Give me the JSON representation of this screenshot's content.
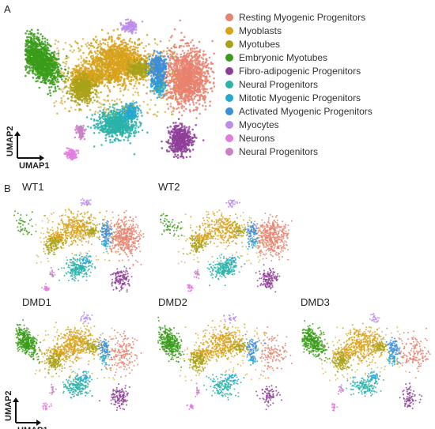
{
  "chart_data": {
    "type": "scatter",
    "panels_label": [
      "A",
      "B"
    ],
    "xlabel": "UMAP1",
    "ylabel": "UMAP2",
    "legend": [
      {
        "name": "Resting Myogenic Progenitors",
        "color": "#E8826E"
      },
      {
        "name": "Myoblasts",
        "color": "#D9A21B"
      },
      {
        "name": "Myotubes",
        "color": "#A8A21A"
      },
      {
        "name": "Embryonic Myotubes",
        "color": "#3A9C1A"
      },
      {
        "name": "Fibro-adipogenic Progenitors",
        "color": "#8E3E98"
      },
      {
        "name": "Neural Progenitors",
        "color": "#2AB3A8"
      },
      {
        "name": "Mitotic Myogenic Progenitors",
        "color": "#23A8D2"
      },
      {
        "name": "Activated Myogenic Progenitors",
        "color": "#3B8EDB"
      },
      {
        "name": "Myocytes",
        "color": "#BC8DEB"
      },
      {
        "name": "Neurons",
        "color": "#E37AE0"
      },
      {
        "name": "Neural Progenitors",
        "color": "#C980C4"
      }
    ],
    "samples": [
      {
        "label": "WT1",
        "weights": [
          1.0,
          0.9,
          0.7,
          0.12,
          0.9,
          0.9,
          0.8,
          0.9,
          0.9,
          0.9,
          0.9
        ]
      },
      {
        "label": "WT2",
        "weights": [
          1.0,
          0.7,
          0.6,
          0.15,
          0.9,
          0.9,
          0.7,
          0.7,
          0.9,
          0.9,
          0.9
        ]
      },
      {
        "label": "DMD1",
        "weights": [
          0.4,
          1.0,
          0.8,
          1.0,
          0.8,
          0.8,
          0.7,
          0.7,
          0.8,
          0.8,
          0.8
        ]
      },
      {
        "label": "DMD2",
        "weights": [
          0.3,
          0.9,
          0.8,
          1.0,
          0.5,
          0.6,
          0.7,
          0.7,
          0.7,
          0.7,
          0.7
        ]
      },
      {
        "label": "DMD3",
        "weights": [
          0.35,
          0.9,
          0.8,
          1.0,
          0.5,
          0.6,
          0.8,
          0.8,
          0.7,
          0.7,
          0.7
        ]
      }
    ]
  }
}
